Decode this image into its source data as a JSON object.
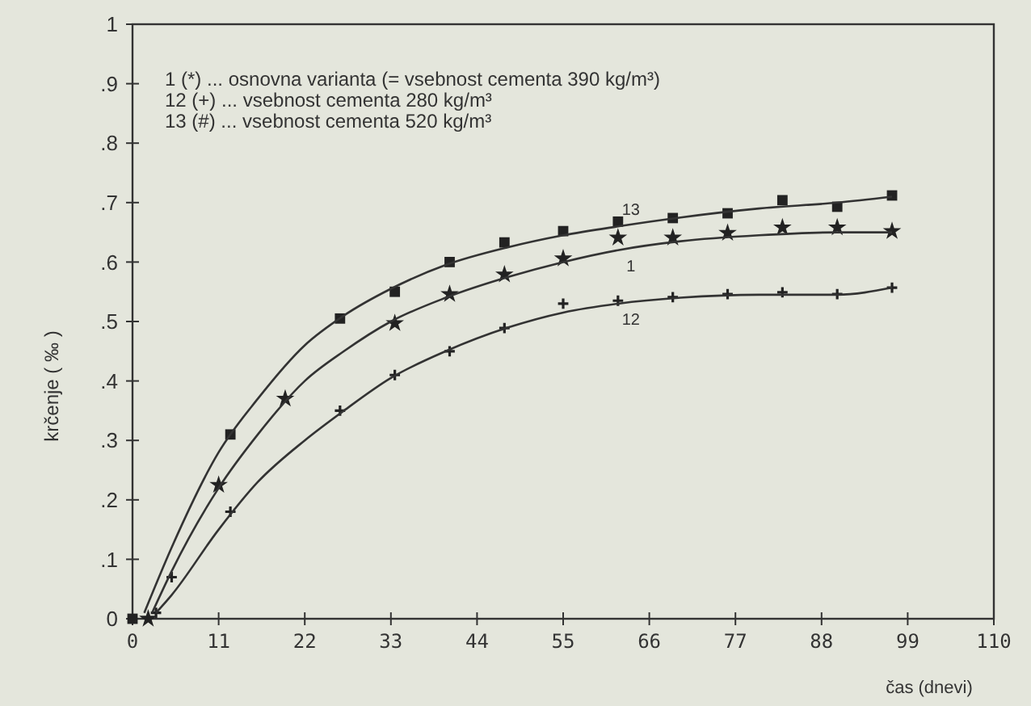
{
  "chart_data": {
    "type": "scatter",
    "xlabel": "čas  (dnevi)",
    "ylabel": "krčenje ( ‰ )",
    "xlim": [
      0,
      110
    ],
    "xticks": [
      0,
      11,
      22,
      33,
      44,
      55,
      66,
      77,
      88,
      99,
      110
    ],
    "ylim": [
      0,
      1
    ],
    "yticks": [
      0,
      {
        "value": 0.1,
        "label": ".1"
      },
      {
        "value": 0.2,
        "label": ".2"
      },
      {
        "value": 0.3,
        "label": ".3"
      },
      {
        "value": 0.4,
        "label": ".4"
      },
      {
        "value": 0.5,
        "label": ".5"
      },
      {
        "value": 0.6,
        "label": ".6"
      },
      {
        "value": 0.7,
        "label": ".7"
      },
      {
        "value": 0.8,
        "label": ".8"
      },
      {
        "value": 0.9,
        "label": ".9"
      },
      1
    ],
    "grid": false,
    "series": [
      {
        "marker": "star",
        "color": "#222222",
        "x": [
          2,
          11,
          19.5,
          33.5,
          40.5,
          47.5,
          55,
          62,
          69,
          76,
          83,
          90,
          97
        ],
        "values": [
          0,
          0.225,
          0.37,
          0.497,
          0.546,
          0.579,
          0.606,
          0.641,
          0.641,
          0.649,
          0.658,
          0.658,
          0.652
        ]
      },
      {
        "marker": "cross",
        "color": "#222222",
        "x": [
          3,
          5,
          12.5,
          26.5,
          33.5,
          40.5,
          47.5,
          55,
          62,
          69,
          76,
          83,
          90,
          97
        ],
        "values": [
          0.01,
          0.07,
          0.18,
          0.35,
          0.41,
          0.45,
          0.489,
          0.53,
          0.535,
          0.541,
          0.546,
          0.549,
          0.546,
          0.557
        ]
      },
      {
        "marker": "square",
        "color": "#222222",
        "x": [
          0,
          12.5,
          26.5,
          33.5,
          40.5,
          47.5,
          55,
          62,
          69,
          76,
          83,
          90,
          97
        ],
        "values": [
          0,
          0.31,
          0.505,
          0.55,
          0.6,
          0.633,
          0.652,
          0.668,
          0.674,
          0.682,
          0.704,
          0.693,
          0.712
        ]
      },
      {
        "type": "line",
        "name": "13",
        "marker": "none",
        "color": "#333333",
        "x": [
          1.5,
          5,
          11,
          16,
          22,
          27,
          33,
          40,
          48,
          55,
          62,
          70,
          80,
          90,
          97
        ],
        "values": [
          0.01,
          0.12,
          0.28,
          0.37,
          0.46,
          0.51,
          0.555,
          0.595,
          0.625,
          0.645,
          0.66,
          0.675,
          0.69,
          0.7,
          0.71
        ]
      },
      {
        "type": "line",
        "name": "1",
        "marker": "none",
        "color": "#333333",
        "x": [
          2.5,
          5,
          11,
          16,
          22,
          27,
          33,
          40,
          48,
          55,
          62,
          70,
          80,
          90,
          97
        ],
        "values": [
          0.01,
          0.08,
          0.22,
          0.31,
          0.4,
          0.45,
          0.5,
          0.54,
          0.575,
          0.6,
          0.62,
          0.635,
          0.645,
          0.65,
          0.65
        ]
      },
      {
        "type": "line",
        "name": "12",
        "marker": "none",
        "color": "#333333",
        "x": [
          3,
          5,
          11,
          16,
          22,
          27,
          33,
          40,
          48,
          55,
          62,
          70,
          80,
          90,
          97
        ],
        "values": [
          0.01,
          0.04,
          0.15,
          0.23,
          0.3,
          0.35,
          0.405,
          0.45,
          0.49,
          0.515,
          0.53,
          0.54,
          0.545,
          0.545,
          0.557
        ]
      }
    ],
    "annotations": [
      "1 (*) ... osnovna varianta (= vsebnost cementa 390 kg/m³)",
      "12 (+) ... vsebnost cementa 280 kg/m³",
      "13 (#) ... vsebnost cementa 520 kg/m³"
    ]
  }
}
